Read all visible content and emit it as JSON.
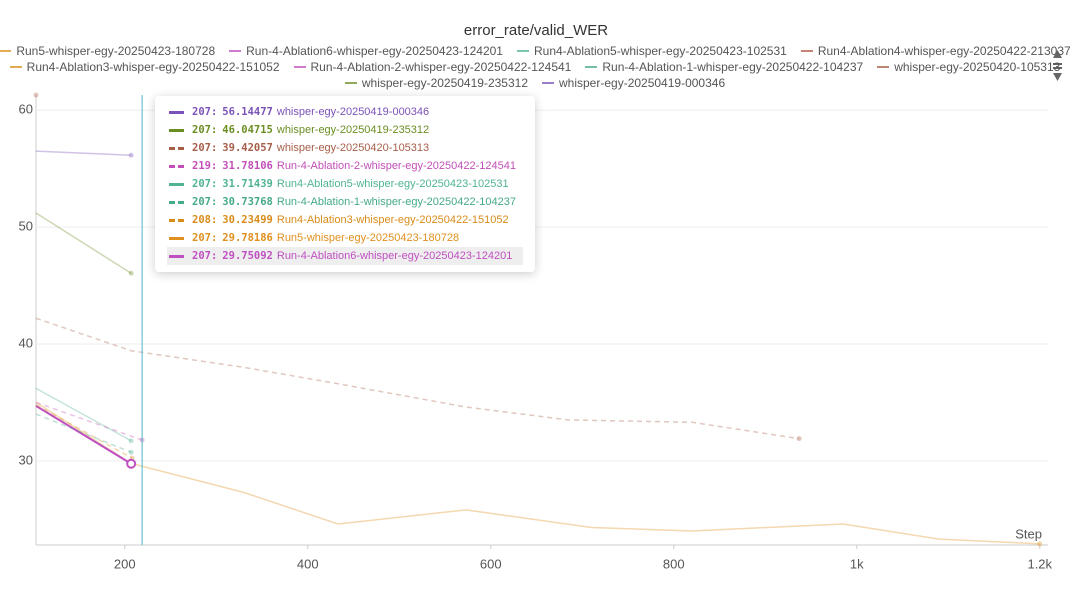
{
  "chart_data": {
    "type": "line",
    "title": "error_rate/valid_WER",
    "x_label": "Step",
    "xlim": [
      103,
      1209
    ],
    "ylim": [
      22.8,
      61.3
    ],
    "xticks": [
      200,
      400,
      600,
      800,
      {
        "value": 1000,
        "label": "1k"
      },
      {
        "value": 1200,
        "label": "1.2k"
      }
    ],
    "yticks": [
      30,
      40,
      50,
      60
    ],
    "grid": true,
    "hover_x": 219,
    "series": [
      {
        "name": "Run5-whisper-egy-20250423-180728",
        "color": "#e0901e",
        "dashed": false,
        "x": [
          103,
          207,
          330,
          433,
          573,
          710,
          820,
          985,
          1090,
          1200
        ],
        "values": [
          35.0,
          29.78186,
          27.3,
          24.6,
          25.8,
          24.3,
          24.0,
          24.6,
          23.3,
          22.9
        ]
      },
      {
        "name": "Run-4-Ablation6-whisper-egy-20250423-124201",
        "color": "#c04fc2",
        "dashed": false,
        "highlight": true,
        "x": [
          103,
          207
        ],
        "values": [
          34.7,
          29.75092
        ]
      },
      {
        "name": "Run4-Ablation5-whisper-egy-20250423-102531",
        "color": "#4fb394",
        "dashed": false,
        "x": [
          103,
          207
        ],
        "values": [
          36.2,
          31.71439
        ]
      },
      {
        "name": "Run4-Ablation4-whisper-egy-20250422-213037",
        "color": "#b05a47",
        "dashed": false,
        "x": [
          103
        ],
        "values": [
          61.3
        ]
      },
      {
        "name": "Run4-Ablation3-whisper-egy-20250422-151052",
        "color": "#d98c1a",
        "dashed": true,
        "x": [
          103,
          208
        ],
        "values": [
          34.8,
          30.23499
        ]
      },
      {
        "name": "Run-4-Ablation-2-whisper-egy-20250422-124541",
        "color": "#c24fb8",
        "dashed": true,
        "x": [
          103,
          219
        ],
        "values": [
          35.0,
          31.78106
        ]
      },
      {
        "name": "Run-4-Ablation-1-whisper-egy-20250422-104237",
        "color": "#45a98a",
        "dashed": true,
        "x": [
          103,
          207
        ],
        "values": [
          34.0,
          30.73768
        ]
      },
      {
        "name": "whisper-egy-20250420-105313",
        "color": "#a65e49",
        "dashed": true,
        "x": [
          103,
          207,
          330,
          433,
          573,
          685,
          820,
          937
        ],
        "values": [
          42.2,
          39.42057,
          38.0,
          36.6,
          34.6,
          33.5,
          33.3,
          31.9
        ]
      },
      {
        "name": "whisper-egy-20250419-235312",
        "color": "#6b8e23",
        "dashed": false,
        "x": [
          103,
          207
        ],
        "values": [
          51.2,
          46.04715
        ]
      },
      {
        "name": "whisper-egy-20250419-000346",
        "color": "#7b52b8",
        "dashed": false,
        "x": [
          103,
          207
        ],
        "values": [
          56.5,
          56.14477
        ]
      }
    ]
  }
}
